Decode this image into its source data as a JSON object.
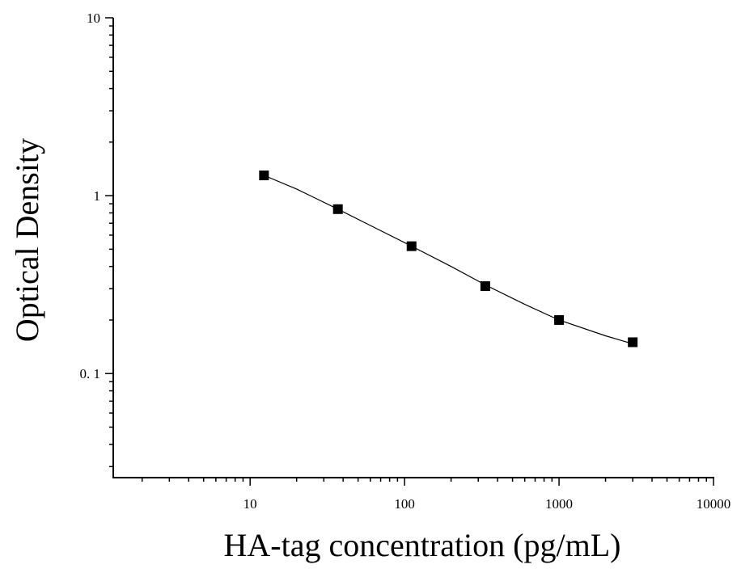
{
  "chart_data": {
    "type": "scatter",
    "title": "",
    "xlabel": "HA-tag concentration (pg/mL)",
    "ylabel": "Optical Density",
    "x_scale": "log",
    "y_scale": "log",
    "xlim": [
      1.3,
      10000
    ],
    "ylim": [
      0.026,
      10
    ],
    "x_tick_labels": [
      "10",
      "100",
      "1000",
      "10000"
    ],
    "y_tick_labels": [
      "0. 1",
      "1",
      "10"
    ],
    "grid": false,
    "legend": "none",
    "marker": "square",
    "color": "#000000",
    "series": [
      {
        "x": [
          12.3,
          37,
          111,
          333,
          1000,
          3000
        ],
        "y": [
          1.3,
          0.84,
          0.52,
          0.31,
          0.2,
          0.15
        ]
      }
    ],
    "fit_curve": {
      "x": [
        12.3,
        20,
        37,
        60,
        111,
        200,
        333,
        600,
        1000,
        2000,
        3000
      ],
      "y": [
        1.3,
        1.09,
        0.84,
        0.68,
        0.52,
        0.4,
        0.315,
        0.245,
        0.2,
        0.163,
        0.147
      ]
    }
  }
}
